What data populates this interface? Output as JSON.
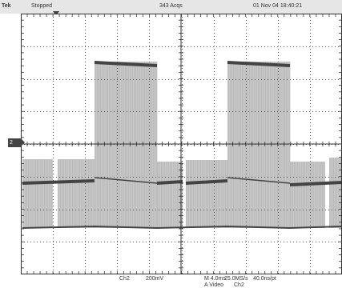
{
  "status_bar": {
    "brand": "Tek",
    "state": "Stopped",
    "acquisitions": "343 Acqs",
    "datetime": "01 Nov 04 18:40:21"
  },
  "channel_marker": {
    "label": "2"
  },
  "readout": {
    "channel": "Ch2",
    "volts_per_div": "200mV",
    "time_per_div": "M 4.0ms",
    "sample_rate": "25.0MS/s",
    "record_resolution": "40.0ns/pt",
    "trigger_type": "A Video",
    "trigger_source": "Ch2"
  },
  "colors": {
    "background": "#ffffff",
    "status_bar": "#e6e6e6",
    "grid": "#333333",
    "waveform_envelope": "#c8c8c8",
    "waveform_trace": "#444444"
  }
}
